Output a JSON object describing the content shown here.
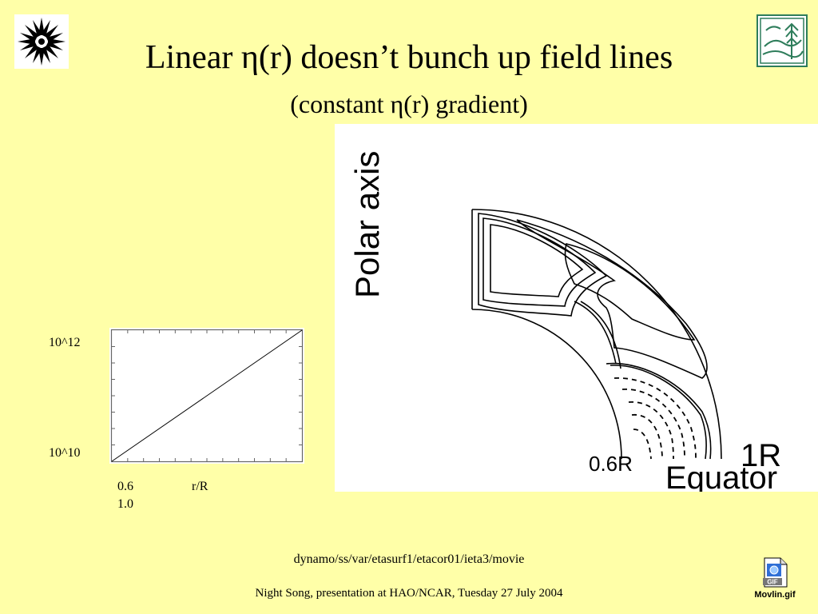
{
  "slide": {
    "title": "Linear η(r) doesn’t bunch up field lines",
    "subtitle": "(constant η(r) gradient)"
  },
  "chart_data": {
    "type": "line",
    "x": [
      0.6,
      1.0
    ],
    "series": [
      {
        "values": [
          10000000000,
          1000000000000
        ]
      }
    ],
    "yscale": "log",
    "ylim": [
      10000000000,
      1000000000000
    ],
    "xlim": [
      0.6,
      1.0
    ],
    "ytick_labels": [
      "10^12",
      "10^10"
    ],
    "xtick_labels": [
      "0.6",
      "1.0"
    ],
    "xlabel": "r/R",
    "ylabel": ""
  },
  "field_plot": {
    "axis_label": "Polar axis",
    "equator_label": "Equator",
    "inner_radius_label": "0.6R",
    "outer_radius_label": "1R"
  },
  "footer": {
    "path": "dynamo/ss/var/etasurf1/etacor01/ieta3/movie",
    "credit": "Night Song, presentation at HAO/NCAR, Tuesday 27 July 2004"
  },
  "movie": {
    "filename": "Movlin.gif",
    "badge": "GIF"
  },
  "icons": {
    "left_logo": "star-burst-icon",
    "right_logo": "landscape-tree-icon",
    "movie": "gif-file-icon"
  },
  "colors": {
    "background": "#FFFFA8",
    "logo_green": "#2E7D5B"
  }
}
